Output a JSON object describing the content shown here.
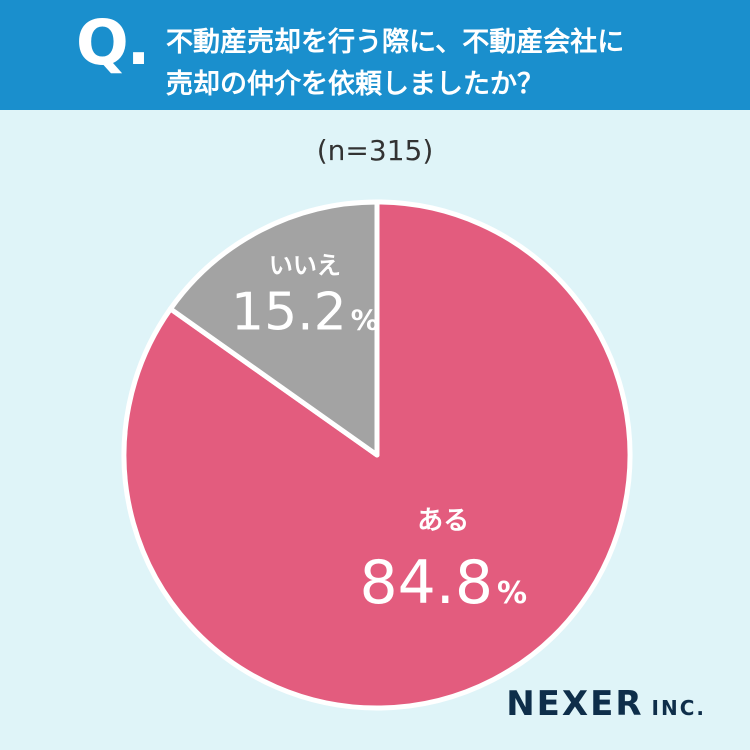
{
  "header": {
    "q_mark": "Q.",
    "question_line1": "不動産売却を行う際に、不動産会社に",
    "question_line2": "売却の仲介を依頼しましたか？"
  },
  "sample_size": "(n=315)",
  "brand": {
    "name": "NEXER",
    "suffix": "INC."
  },
  "colors": {
    "header_bg": "#1a8fcd",
    "page_bg": "#dff4f8",
    "yes": "#e35c7e",
    "no": "#a3a3a3"
  },
  "chart_data": {
    "type": "pie",
    "title": "不動産売却を行う際に、不動産会社に売却の仲介を依頼しましたか？",
    "start": "12 o'clock",
    "direction": "clockwise",
    "slices": [
      {
        "label": "ある",
        "value": 84.8,
        "display": "84.8",
        "unit": "%",
        "color": "#e35c7e"
      },
      {
        "label": "いいえ",
        "value": 15.2,
        "display": "15.2",
        "unit": "%",
        "color": "#a3a3a3"
      }
    ]
  }
}
